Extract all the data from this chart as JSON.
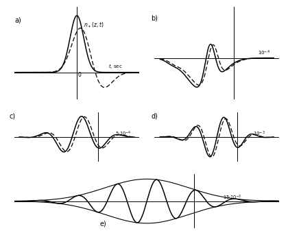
{
  "background_color": "#ffffff",
  "panels": [
    {
      "label": "a)",
      "curve_label": "$n_+(z,t)$",
      "time_label": "$t$, sec",
      "origin_label": "0"
    },
    {
      "label": "b)",
      "scale_label": "$10^{-4}$"
    },
    {
      "label": "c)",
      "scale_label": "$5{\\cdot}10^{-4}$"
    },
    {
      "label": "d)",
      "scale_label": "$10^{-3}$"
    },
    {
      "label": "e)",
      "scale_label": "$15{\\cdot}10^{-3}$"
    }
  ]
}
